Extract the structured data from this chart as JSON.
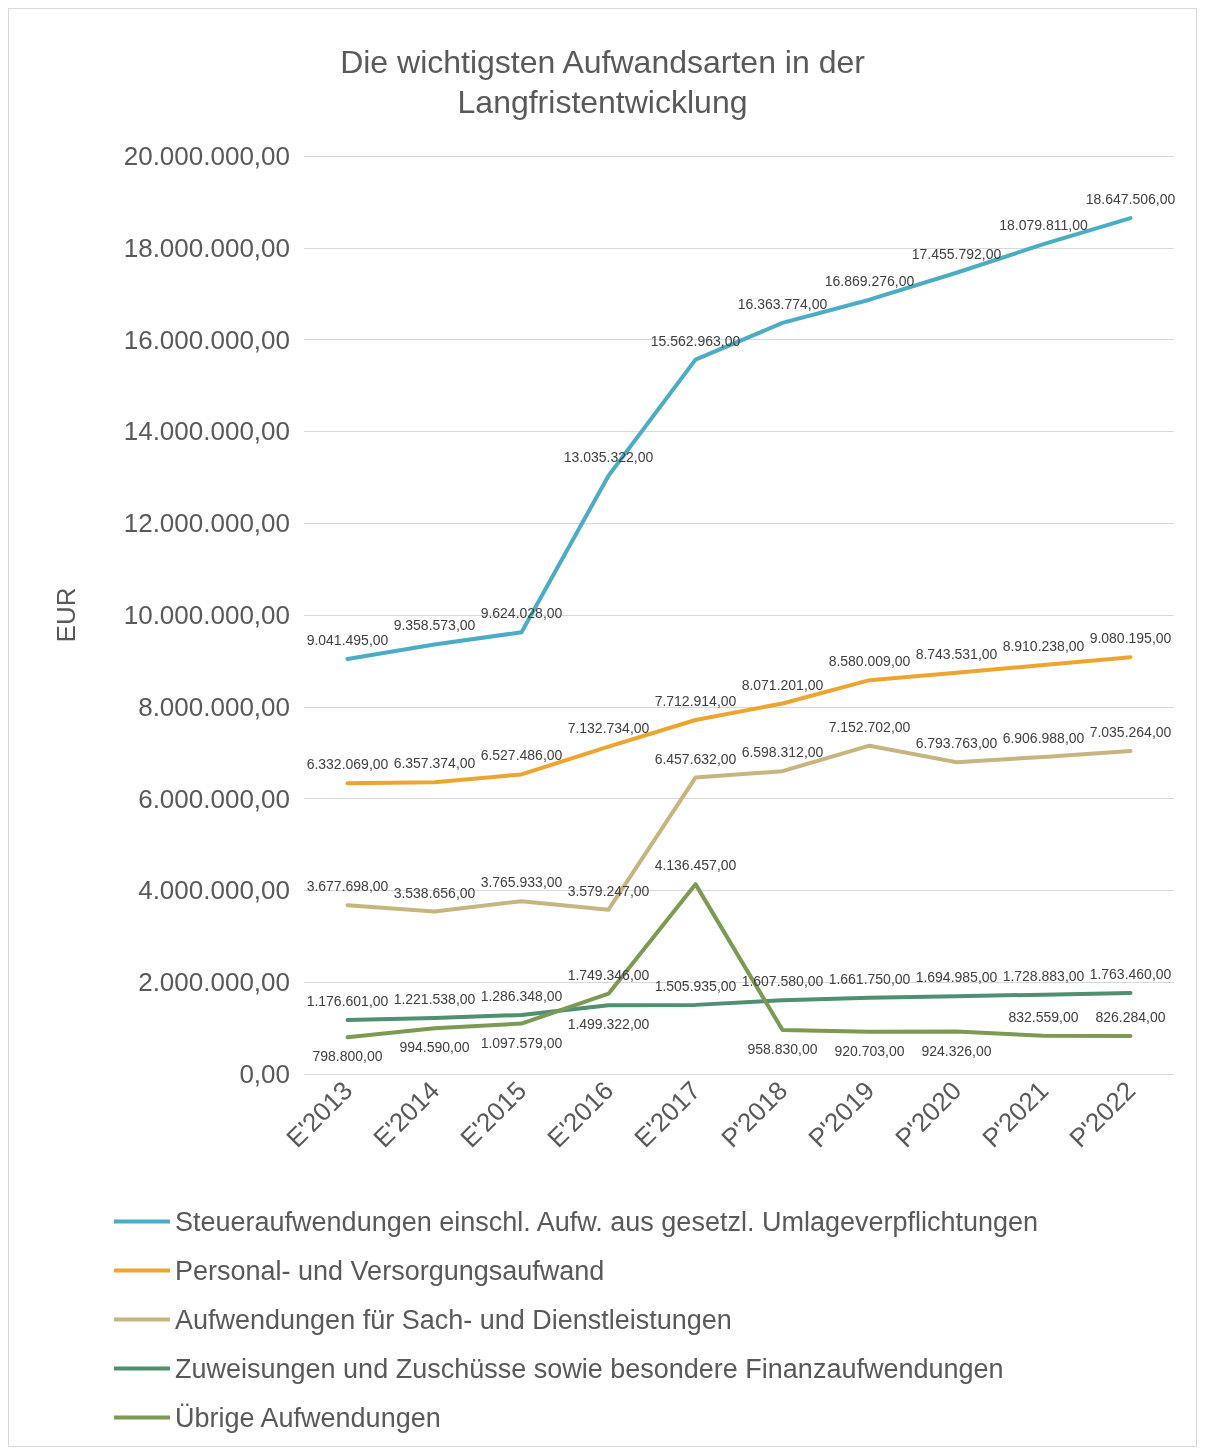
{
  "chart_data": {
    "type": "line",
    "title": "Die wichtigsten Aufwandsarten in der\nLangfristentwicklung",
    "ylabel": "EUR",
    "categories": [
      "E'2013",
      "E'2014",
      "E'2015",
      "E'2016",
      "E'2017",
      "P'2018",
      "P'2019",
      "P'2020",
      "P'2021",
      "P'2022"
    ],
    "series": [
      {
        "name": "Steueraufwendungen einschl. Aufw. aus gesetzl. Umlageverpflichtungen",
        "color": "#4bacc6",
        "values": [
          9041495,
          9358573,
          9624028,
          13035322,
          15562963,
          16363774,
          16869276,
          17455792,
          18079811,
          18647506
        ],
        "value_labels": [
          "9.041.495,00",
          "9.358.573,00",
          "9.624.028,00",
          "13.035.322,00",
          "15.562.963,00",
          "16.363.774,00",
          "16.869.276,00",
          "17.455.792,00",
          "18.079.811,00",
          "18.647.506,00"
        ]
      },
      {
        "name": "Personal- und Versorgungsaufwand",
        "color": "#eda52f",
        "values": [
          6332069,
          6357374,
          6527486,
          7132734,
          7712914,
          8071201,
          8580009,
          8743531,
          8910238,
          9080195
        ],
        "value_labels": [
          "6.332.069,00",
          "6.357.374,00",
          "6.527.486,00",
          "7.132.734,00",
          "7.712.914,00",
          "8.071.201,00",
          "8.580.009,00",
          "8.743.531,00",
          "8.910.238,00",
          "9.080.195,00"
        ]
      },
      {
        "name": "Aufwendungen für Sach- und Dienstleistungen",
        "color": "#c8b47e",
        "values": [
          3677698,
          3538656,
          3765933,
          3579247,
          6457632,
          6598312,
          7152702,
          6793763,
          6906988,
          7035264
        ],
        "value_labels": [
          "3.677.698,00",
          "3.538.656,00",
          "3.765.933,00",
          "3.579.247,00",
          "6.457.632,00",
          "6.598.312,00",
          "7.152.702,00",
          "6.793.763,00",
          "6.906.988,00",
          "7.035.264,00"
        ]
      },
      {
        "name": "Zuweisungen und Zuschüsse sowie besondere Finanzaufwendungen",
        "color": "#4e9070",
        "values": [
          1176601,
          1221538,
          1286348,
          1499322,
          1505935,
          1607580,
          1661750,
          1694985,
          1728883,
          1763460
        ],
        "value_labels": [
          "1.176.601,00",
          "1.221.538,00",
          "1.286.348,00",
          "1.499.322,00",
          "1.505.935,00",
          "1.607.580,00",
          "1.661.750,00",
          "1.694.985,00",
          "1.728.883,00",
          "1.763.460,00"
        ]
      },
      {
        "name": "Übrige Aufwendungen",
        "color": "#7b9a52",
        "values": [
          798800,
          994590,
          1097579,
          1749346,
          4136457,
          958830,
          920703,
          924326,
          832559,
          826284
        ],
        "value_labels": [
          "798.800,00",
          "994.590,00",
          "1.097.579,00",
          "1.749.346,00",
          "4.136.457,00",
          "958.830,00",
          "920.703,00",
          "924.326,00",
          "832.559,00",
          "826.284,00"
        ]
      }
    ],
    "ylim": [
      0,
      20000000
    ],
    "yticks": [
      {
        "value": 0,
        "label": "0,00"
      },
      {
        "value": 2000000,
        "label": "2.000.000,00"
      },
      {
        "value": 4000000,
        "label": "4.000.000,00"
      },
      {
        "value": 6000000,
        "label": "6.000.000,00"
      },
      {
        "value": 8000000,
        "label": "8.000.000,00"
      },
      {
        "value": 10000000,
        "label": "10.000.000,00"
      },
      {
        "value": 12000000,
        "label": "12.000.000,00"
      },
      {
        "value": 14000000,
        "label": "14.000.000,00"
      },
      {
        "value": 16000000,
        "label": "16.000.000,00"
      },
      {
        "value": 18000000,
        "label": "18.000.000,00"
      },
      {
        "value": 20000000,
        "label": "20.000.000,00"
      }
    ],
    "grid": "y",
    "legend": "bottom",
    "marker": "none",
    "line_style": "solid"
  }
}
